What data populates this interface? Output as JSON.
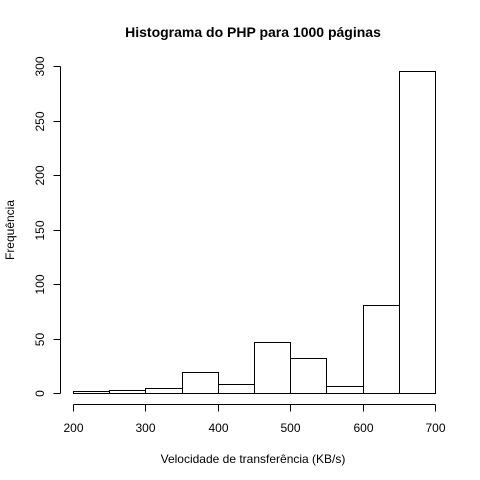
{
  "chart_data": {
    "type": "bar",
    "title": "Histograma do PHP para 1000 páginas",
    "xlabel": "Velocidade de transferência (KB/s)",
    "ylabel": "Frequência",
    "bins": [
      {
        "from": 200,
        "to": 250,
        "count": 2
      },
      {
        "from": 250,
        "to": 300,
        "count": 3
      },
      {
        "from": 300,
        "to": 350,
        "count": 5
      },
      {
        "from": 350,
        "to": 400,
        "count": 19
      },
      {
        "from": 400,
        "to": 450,
        "count": 8
      },
      {
        "from": 450,
        "to": 500,
        "count": 47
      },
      {
        "from": 500,
        "to": 550,
        "count": 32
      },
      {
        "from": 550,
        "to": 600,
        "count": 6
      },
      {
        "from": 600,
        "to": 650,
        "count": 81
      },
      {
        "from": 650,
        "to": 700,
        "count": 295
      }
    ],
    "xlim": [
      200,
      700
    ],
    "ylim": [
      0,
      300
    ],
    "x_ticks": [
      200,
      300,
      400,
      500,
      600,
      700
    ],
    "y_ticks": [
      0,
      50,
      100,
      150,
      200,
      250,
      300
    ],
    "grid": false,
    "colors": {
      "bar_fill": "#ffffff",
      "bar_stroke": "#000000"
    }
  }
}
